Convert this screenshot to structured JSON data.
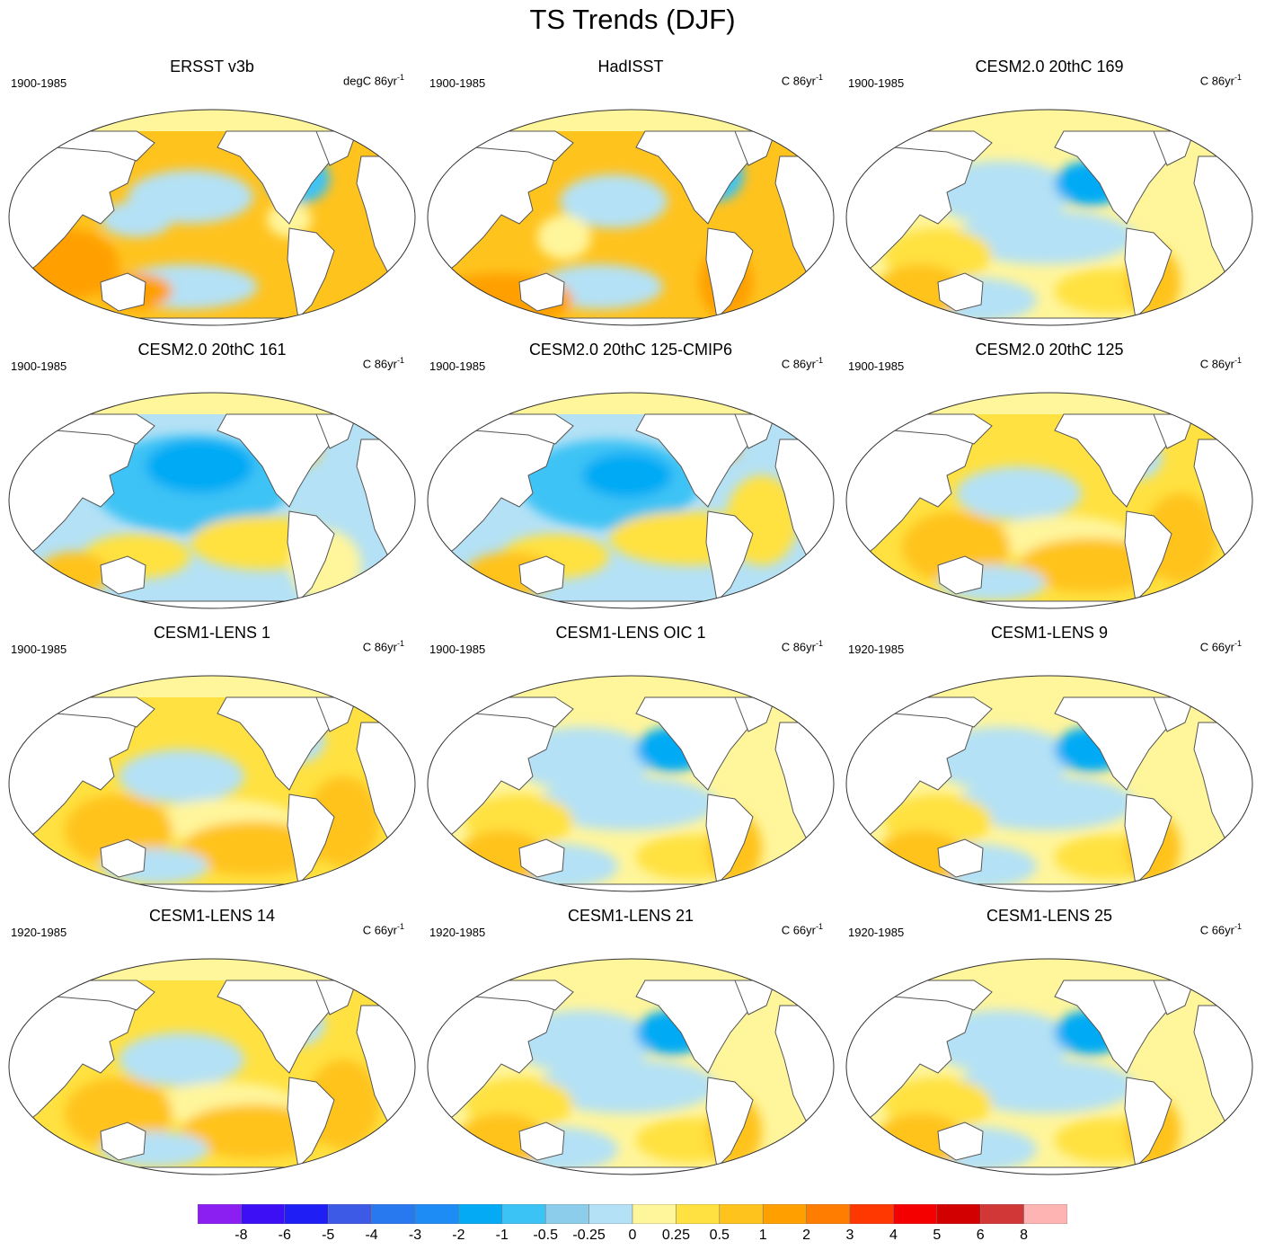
{
  "title": "TS Trends (DJF)",
  "panels": [
    {
      "title": "ERSST v3b",
      "period": "1900-1985",
      "units": "degC 86yr",
      "units_exp": "-1",
      "pattern": "obs1"
    },
    {
      "title": "HadISST",
      "period": "1900-1985",
      "units": "C 86yr",
      "units_exp": "-1",
      "pattern": "obs2"
    },
    {
      "title": "CESM2.0 20thC 169",
      "period": "1900-1985",
      "units": "C 86yr",
      "units_exp": "-1",
      "pattern": "mild"
    },
    {
      "title": "CESM2.0 20thC 161",
      "period": "1900-1985",
      "units": "C 86yr",
      "units_exp": "-1",
      "pattern": "cool"
    },
    {
      "title": "CESM2.0 20thC 125-CMIP6",
      "period": "1900-1985",
      "units": "C 86yr",
      "units_exp": "-1",
      "pattern": "cool2"
    },
    {
      "title": "CESM2.0 20thC 125",
      "period": "1900-1985",
      "units": "C 86yr",
      "units_exp": "-1",
      "pattern": "warm"
    },
    {
      "title": "CESM1-LENS 1",
      "period": "1900-1985",
      "units": "C 86yr",
      "units_exp": "-1",
      "pattern": "warm"
    },
    {
      "title": "CESM1-LENS OIC 1",
      "period": "1900-1985",
      "units": "C 86yr",
      "units_exp": "-1",
      "pattern": "mild"
    },
    {
      "title": "CESM1-LENS 9",
      "period": "1920-1985",
      "units": "C 66yr",
      "units_exp": "-1",
      "pattern": "mild"
    },
    {
      "title": "CESM1-LENS 14",
      "period": "1920-1985",
      "units": "C 66yr",
      "units_exp": "-1",
      "pattern": "warm"
    },
    {
      "title": "CESM1-LENS 21",
      "period": "1920-1985",
      "units": "C 66yr",
      "units_exp": "-1",
      "pattern": "mild"
    },
    {
      "title": "CESM1-LENS 25",
      "period": "1920-1985",
      "units": "C 66yr",
      "units_exp": "-1",
      "pattern": "mild"
    }
  ],
  "colorbar": {
    "colors": [
      "#8b1ef0",
      "#3c0ff5",
      "#1e1ef5",
      "#3c5ae6",
      "#2878f0",
      "#1e8cf5",
      "#05aaf5",
      "#3cc3f5",
      "#8ccdeb",
      "#b4e1f5",
      "#fff59b",
      "#ffe141",
      "#ffc31e",
      "#ffa000",
      "#ff7d00",
      "#ff3700",
      "#f50000",
      "#d20000",
      "#d23737",
      "#ffb4b4"
    ],
    "labels": [
      "-8",
      "-6",
      "-5",
      "-4",
      "-3",
      "-2",
      "-1",
      "-0.5",
      "-0.25",
      "0",
      "0.25",
      "0.5",
      "1",
      "2",
      "3",
      "4",
      "5",
      "6",
      "8"
    ]
  }
}
